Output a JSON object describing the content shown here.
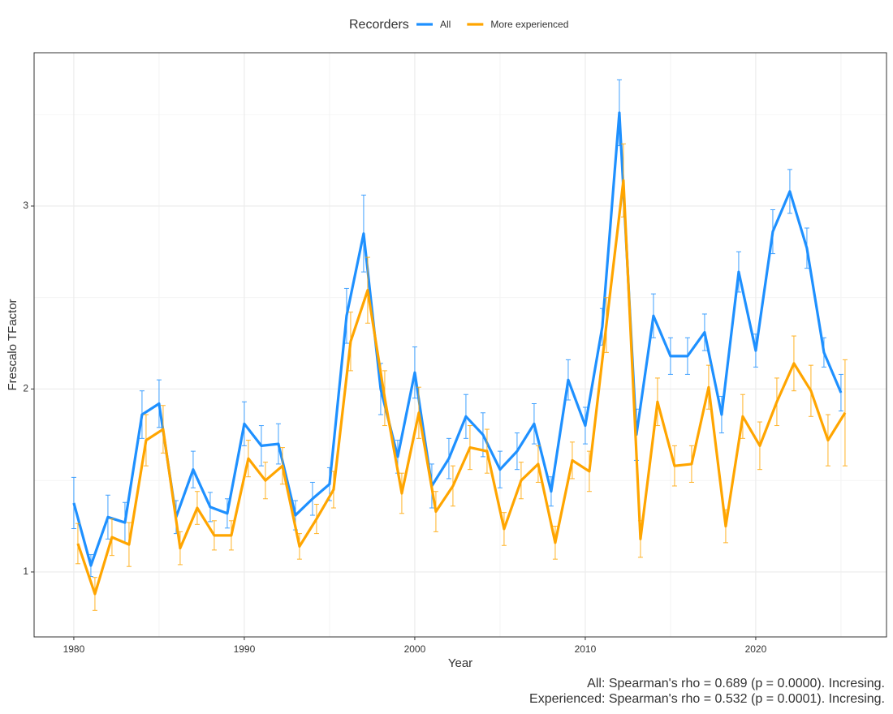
{
  "chart_data": {
    "type": "line",
    "legend_title": "Recorders",
    "legend_position": "top",
    "xlabel": "Year",
    "ylabel": "Frescalo TFactor",
    "annotations": [
      "All: Spearman's rho = 0.689 (p = 0.0000). Incresing.",
      "Experienced: Spearman's rho = 0.532 (p = 0.0001). Incresing."
    ],
    "x": [
      1980,
      1981,
      1982,
      1983,
      1984,
      1985,
      1986,
      1987,
      1988,
      1989,
      1990,
      1991,
      1992,
      1993,
      1994,
      1995,
      1996,
      1997,
      1998,
      1999,
      2000,
      2001,
      2002,
      2003,
      2004,
      2005,
      2006,
      2007,
      2008,
      2009,
      2010,
      2011,
      2012,
      2013,
      2014,
      2015,
      2016,
      2017,
      2018,
      2019,
      2020,
      2021,
      2022,
      2023,
      2024,
      2025
    ],
    "series": [
      {
        "name": "All",
        "color": "#1e90ff",
        "values": [
          1.377,
          1.035,
          1.3,
          1.27,
          1.86,
          1.92,
          1.3,
          1.56,
          1.355,
          1.32,
          1.81,
          1.69,
          1.7,
          1.31,
          1.4,
          1.48,
          2.4,
          2.85,
          2.0,
          1.63,
          2.09,
          1.47,
          1.62,
          1.85,
          1.75,
          1.56,
          1.66,
          1.81,
          1.44,
          2.05,
          1.8,
          2.34,
          3.51,
          1.75,
          2.4,
          2.18,
          2.18,
          2.31,
          1.86,
          2.64,
          2.21,
          2.86,
          3.08,
          2.77,
          2.2,
          1.98
        ],
        "errors": [
          0.14,
          0.06,
          0.12,
          0.11,
          0.13,
          0.13,
          0.09,
          0.1,
          0.08,
          0.08,
          0.12,
          0.11,
          0.11,
          0.08,
          0.09,
          0.09,
          0.15,
          0.21,
          0.14,
          0.09,
          0.14,
          0.12,
          0.11,
          0.12,
          0.12,
          0.1,
          0.1,
          0.11,
          0.08,
          0.11,
          0.1,
          0.1,
          0.18,
          0.14,
          0.12,
          0.1,
          0.1,
          0.1,
          0.1,
          0.11,
          0.09,
          0.12,
          0.12,
          0.11,
          0.08,
          0.1
        ]
      },
      {
        "name": "More experienced",
        "color": "#ffa500",
        "values": [
          1.155,
          0.88,
          1.19,
          1.15,
          1.72,
          1.78,
          1.13,
          1.35,
          1.2,
          1.2,
          1.62,
          1.5,
          1.58,
          1.14,
          1.29,
          1.45,
          2.26,
          2.54,
          1.95,
          1.43,
          1.87,
          1.33,
          1.47,
          1.68,
          1.66,
          1.235,
          1.5,
          1.59,
          1.16,
          1.61,
          1.55,
          2.35,
          3.14,
          1.18,
          1.93,
          1.58,
          1.59,
          2.01,
          1.25,
          1.85,
          1.69,
          1.93,
          2.14,
          1.99,
          1.72,
          1.87
        ],
        "errors": [
          0.11,
          0.09,
          0.1,
          0.12,
          0.14,
          0.13,
          0.09,
          0.09,
          0.08,
          0.08,
          0.1,
          0.1,
          0.1,
          0.07,
          0.08,
          0.1,
          0.16,
          0.18,
          0.15,
          0.11,
          0.14,
          0.11,
          0.11,
          0.12,
          0.12,
          0.09,
          0.1,
          0.1,
          0.09,
          0.1,
          0.11,
          0.15,
          0.2,
          0.1,
          0.13,
          0.11,
          0.1,
          0.12,
          0.09,
          0.12,
          0.13,
          0.13,
          0.15,
          0.14,
          0.14,
          0.29
        ]
      }
    ],
    "xlim": [
      1977.67,
      2027.67
    ],
    "xticks": [
      1980,
      1990,
      2000,
      2010,
      2020
    ],
    "ylim": [
      0.645,
      3.838
    ],
    "yticks": [
      1,
      2,
      3
    ],
    "grid": true
  }
}
